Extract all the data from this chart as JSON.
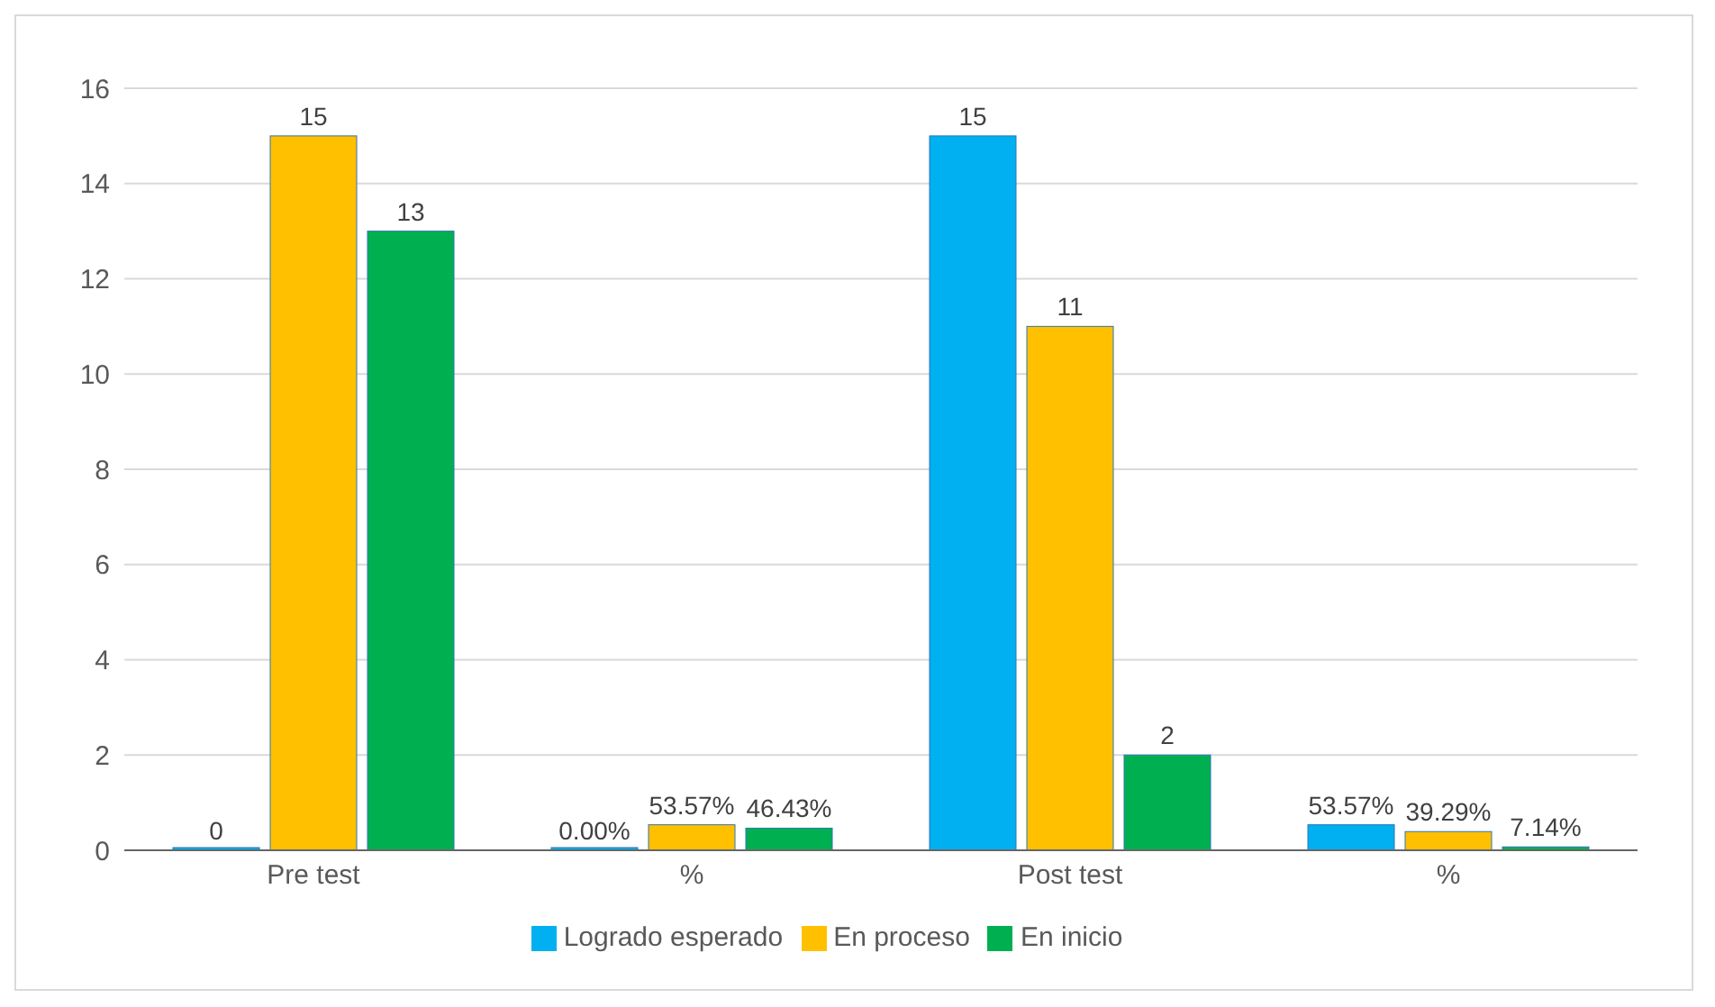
{
  "chart_data": {
    "type": "bar",
    "categories": [
      "Pre test",
      "%",
      "Post test",
      "%"
    ],
    "series": [
      {
        "name": "Logrado esperado",
        "color": "#00b0f0",
        "values": [
          0,
          0,
          15,
          0.5357
        ],
        "value_labels": [
          "0",
          "0.00%",
          "15",
          "53.57%"
        ]
      },
      {
        "name": "En proceso",
        "color": "#ffc000",
        "values": [
          15,
          0.5357,
          11,
          0.3929
        ],
        "value_labels": [
          "15",
          "53.57%",
          "11",
          "39.29%"
        ]
      },
      {
        "name": "En inicio",
        "color": "#00b050",
        "values": [
          13,
          0.4643,
          2,
          0.0714
        ],
        "value_labels": [
          "13",
          "46.43%",
          "2",
          "7.14%"
        ]
      }
    ],
    "ylim": [
      0,
      16
    ],
    "yticks": [
      0,
      2,
      4,
      6,
      8,
      10,
      12,
      14,
      16
    ],
    "grid": "y",
    "legend": "bottom"
  }
}
